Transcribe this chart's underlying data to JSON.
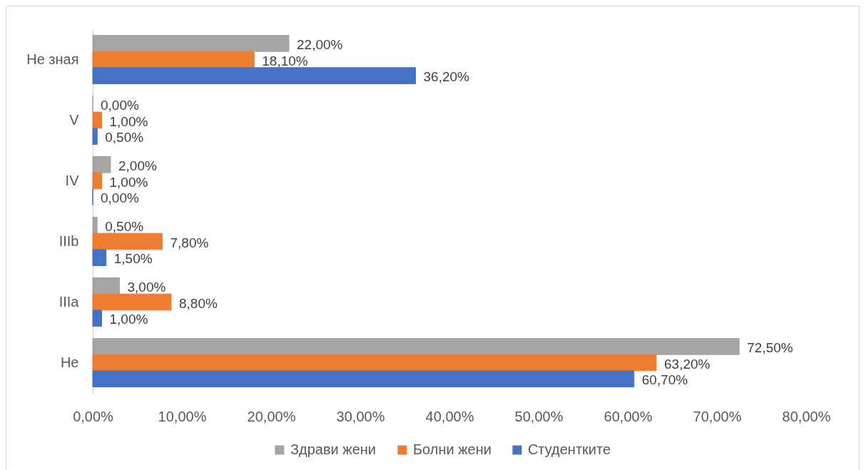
{
  "chart_data": {
    "type": "bar",
    "orientation": "horizontal",
    "categories": [
      "Не зная",
      "V",
      "IV",
      "IIIb",
      "IIIa",
      "Не"
    ],
    "series": [
      {
        "name": "Здрави жени",
        "color": "#a5a5a5",
        "values": [
          22.0,
          0.0,
          2.0,
          0.5,
          3.0,
          72.5
        ],
        "value_labels": [
          "22,00%",
          "0,00%",
          "2,00%",
          "0,50%",
          "3,00%",
          "72,50%"
        ]
      },
      {
        "name": "Болни жени",
        "color": "#ed7d31",
        "values": [
          18.1,
          1.0,
          1.0,
          7.8,
          8.8,
          63.2
        ],
        "value_labels": [
          "18,10%",
          "1,00%",
          "1,00%",
          "7,80%",
          "8,80%",
          "63,20%"
        ]
      },
      {
        "name": "Студентките",
        "color": "#4472c4",
        "values": [
          36.2,
          0.5,
          0.0,
          1.5,
          1.0,
          60.7
        ],
        "value_labels": [
          "36,20%",
          "0,50%",
          "0,00%",
          "1,50%",
          "1,00%",
          "60,70%"
        ]
      }
    ],
    "xlim": [
      0,
      80
    ],
    "xticks": [
      {
        "value": 0,
        "label": "0,00%"
      },
      {
        "value": 10,
        "label": "10,00%"
      },
      {
        "value": 20,
        "label": "20,00%"
      },
      {
        "value": 30,
        "label": "30,00%"
      },
      {
        "value": 40,
        "label": "40,00%"
      },
      {
        "value": 50,
        "label": "50,00%"
      },
      {
        "value": 60,
        "label": "60,00%"
      },
      {
        "value": 70,
        "label": "70,00%"
      },
      {
        "value": 80,
        "label": "80,00%"
      }
    ],
    "legend": "bottom"
  }
}
